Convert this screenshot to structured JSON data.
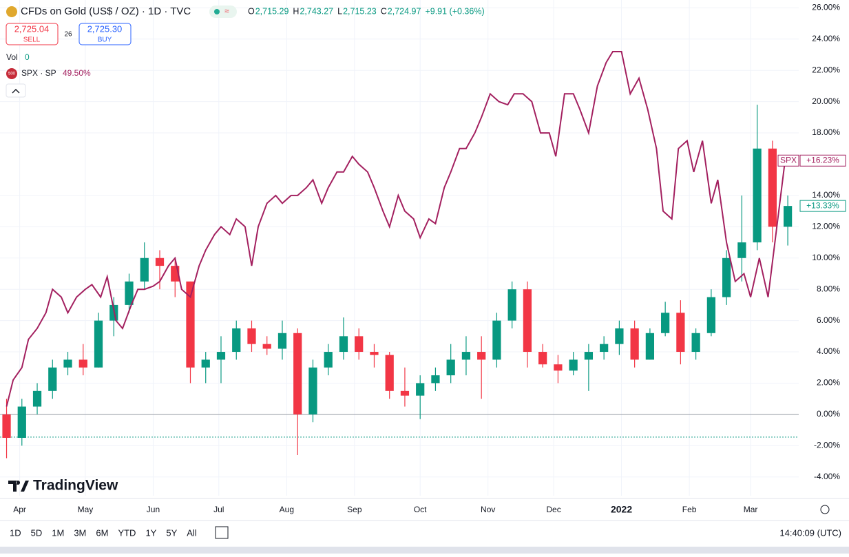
{
  "header": {
    "title": "CFDs on Gold (US$ / OZ) · 1D · TVC",
    "ohlc": [
      {
        "key": "O",
        "value": "2,715.29"
      },
      {
        "key": "H",
        "value": "2,743.27"
      },
      {
        "key": "L",
        "value": "2,715.23"
      },
      {
        "key": "C",
        "value": "2,724.97"
      },
      {
        "key": "",
        "value": "+9.91 (+0.36%)"
      }
    ],
    "sell": {
      "price": "2,725.04",
      "label": "SELL"
    },
    "spread": "26",
    "buy": {
      "price": "2,725.30",
      "label": "BUY"
    },
    "vol": {
      "label": "Vol",
      "value": "0"
    },
    "compare": {
      "badge": "500",
      "label": "SPX · SP",
      "value": "49.50%"
    }
  },
  "logo": "TradingView",
  "footer": {
    "ranges": [
      "1D",
      "5D",
      "1M",
      "3M",
      "6M",
      "YTD",
      "1Y",
      "5Y",
      "All"
    ],
    "clock": "14:40:09 (UTC)"
  },
  "chart_data": {
    "type": "candlestick",
    "up_color": "#089981",
    "down_color": "#f23645",
    "x": [
      0,
      7,
      14,
      21,
      28,
      35,
      42,
      49,
      56,
      63,
      70,
      77,
      84,
      91,
      98,
      105,
      112,
      119,
      126,
      133,
      140,
      147,
      154,
      161,
      168,
      175,
      182,
      189,
      196,
      203,
      210,
      217,
      224,
      231,
      238,
      245,
      252,
      259,
      266,
      273,
      280,
      287,
      294,
      301,
      308,
      315,
      322,
      329,
      336,
      343,
      350,
      357
    ],
    "open": [
      0,
      -1.5,
      0.5,
      1.5,
      3,
      3.5,
      3,
      6,
      7,
      8.5,
      10,
      9.5,
      8.5,
      3,
      3.5,
      4,
      5.5,
      4.5,
      4.2,
      5.2,
      0,
      3,
      4,
      5,
      4,
      3.8,
      1.5,
      1.2,
      2,
      2.5,
      3.5,
      4,
      3.5,
      6,
      8,
      4,
      3.2,
      2.8,
      3.5,
      4,
      4.5,
      5.5,
      3.5,
      5.2,
      6.5,
      4,
      5.2,
      7.5,
      10,
      11,
      17,
      12
    ],
    "high": [
      1,
      1,
      2,
      3.5,
      4,
      4.5,
      6.5,
      7.5,
      9,
      11,
      10.5,
      10,
      8.5,
      4,
      5,
      6,
      6,
      5,
      6,
      5.5,
      3.5,
      4.5,
      6.2,
      5.5,
      4.5,
      4,
      3,
      2.5,
      3,
      4.5,
      5,
      5,
      6.5,
      8.5,
      8.5,
      4.5,
      3.8,
      4,
      4.5,
      5,
      6,
      6,
      5.5,
      7.2,
      7.3,
      5.5,
      8,
      10.5,
      14,
      19.8,
      17.5,
      14
    ],
    "low": [
      -2.8,
      -2,
      0,
      1,
      2.5,
      2.5,
      3,
      5,
      6.5,
      8,
      8,
      7.5,
      2,
      2,
      2,
      3.5,
      4,
      3.8,
      3.5,
      -2.6,
      -0.5,
      2.5,
      3.5,
      3.5,
      3,
      1,
      0.5,
      -0.3,
      1.5,
      2,
      2.5,
      1,
      3,
      5.5,
      3,
      3,
      2,
      2.5,
      1.5,
      3.5,
      3.8,
      3,
      3.5,
      5,
      3.2,
      3.5,
      5,
      7,
      8.5,
      10.5,
      11,
      10.8
    ],
    "close": [
      -1.5,
      0.5,
      1.5,
      3,
      3.5,
      3,
      6,
      7,
      8.5,
      10,
      9.5,
      8.5,
      3,
      3.5,
      4,
      5.5,
      4.5,
      4.2,
      5.2,
      0,
      3,
      4,
      5,
      4,
      3.8,
      1.5,
      1.2,
      2,
      2.5,
      3.5,
      4,
      3.5,
      6,
      8,
      4,
      3.2,
      2.8,
      3.5,
      4,
      4.5,
      5.5,
      3.5,
      5.2,
      6.5,
      4,
      5.2,
      7.5,
      10,
      11,
      17,
      12,
      13.33
    ],
    "last_label": "+13.33%",
    "baseline": 0,
    "price_line": -1.45,
    "compare": {
      "name": "SPX",
      "color": "#a3205f",
      "last_label": "+16.23%",
      "x": [
        0,
        3,
        7,
        10,
        14,
        18,
        21,
        25,
        28,
        32,
        36,
        39,
        43,
        46,
        50,
        53,
        57,
        60,
        63,
        67,
        70,
        74,
        77,
        80,
        84,
        88,
        91,
        95,
        98,
        102,
        105,
        109,
        112,
        115,
        119,
        123,
        126,
        130,
        133,
        137,
        140,
        144,
        147,
        151,
        154,
        158,
        161,
        165,
        168,
        172,
        175,
        179,
        182,
        186,
        189,
        193,
        196,
        200,
        203,
        207,
        210,
        214,
        217,
        221,
        225,
        229,
        232,
        236,
        240,
        244,
        248,
        251,
        255,
        259,
        262,
        266,
        270,
        274,
        277,
        281,
        285,
        289,
        293,
        297,
        300,
        304,
        307,
        311,
        314,
        318,
        322,
        325,
        329,
        333,
        337,
        340,
        344,
        348,
        352,
        356,
        359
      ],
      "values": [
        0.5,
        2.2,
        3,
        4.8,
        5.5,
        6.5,
        8,
        7.5,
        6.5,
        7.5,
        8,
        8.3,
        7.5,
        8.8,
        6,
        5.5,
        7,
        8,
        8,
        8.2,
        8.5,
        9.5,
        10,
        8,
        7.5,
        9.5,
        10.5,
        11.5,
        12,
        11.5,
        12.5,
        12,
        9.5,
        12,
        13.5,
        14,
        13.5,
        14,
        14,
        14.5,
        15,
        13.5,
        14.5,
        15.5,
        15.5,
        16.5,
        16,
        15.5,
        14.5,
        13,
        12,
        14,
        13,
        12.5,
        11.3,
        12.5,
        12.2,
        14.5,
        15.5,
        17,
        17,
        18,
        19,
        20.5,
        20,
        19.8,
        20.5,
        20.5,
        20,
        18,
        18,
        16.5,
        20.5,
        20.5,
        19.5,
        18,
        21,
        22.5,
        23.2,
        23.2,
        20.5,
        21.5,
        19.5,
        17,
        13,
        12.5,
        17,
        17.5,
        15.5,
        17.5,
        13.5,
        15,
        11,
        8.5,
        9,
        7.5,
        10,
        7.5,
        12,
        16.5,
        16.23
      ]
    },
    "xlim": [
      -3,
      362
    ],
    "xticks": [
      {
        "value": 6,
        "label": "Apr"
      },
      {
        "value": 36,
        "label": "May"
      },
      {
        "value": 67,
        "label": "Jun"
      },
      {
        "value": 97,
        "label": "Jul"
      },
      {
        "value": 128,
        "label": "Aug"
      },
      {
        "value": 159,
        "label": "Sep"
      },
      {
        "value": 189,
        "label": "Oct"
      },
      {
        "value": 220,
        "label": "Nov"
      },
      {
        "value": 250,
        "label": "Dec"
      },
      {
        "value": 281,
        "label": "2022"
      },
      {
        "value": 312,
        "label": "Feb"
      },
      {
        "value": 340,
        "label": "Mar"
      }
    ],
    "ylim": [
      -5.2,
      26.5
    ],
    "yticks": [
      {
        "value": 26,
        "label": "26.00%"
      },
      {
        "value": 24,
        "label": "24.00%"
      },
      {
        "value": 22,
        "label": "22.00%"
      },
      {
        "value": 20,
        "label": "20.00%"
      },
      {
        "value": 18,
        "label": "18.00%"
      },
      {
        "value": 14,
        "label": "14.00%"
      },
      {
        "value": 12,
        "label": "12.00%"
      },
      {
        "value": 10,
        "label": "10.00%"
      },
      {
        "value": 8,
        "label": "8.00%"
      },
      {
        "value": 6,
        "label": "6.00%"
      },
      {
        "value": 4,
        "label": "4.00%"
      },
      {
        "value": 2,
        "label": "2.00%"
      },
      {
        "value": 0,
        "label": "0.00%"
      },
      {
        "value": -2,
        "label": "-2.00%"
      },
      {
        "value": -4,
        "label": "-4.00%"
      }
    ],
    "grid": true
  }
}
